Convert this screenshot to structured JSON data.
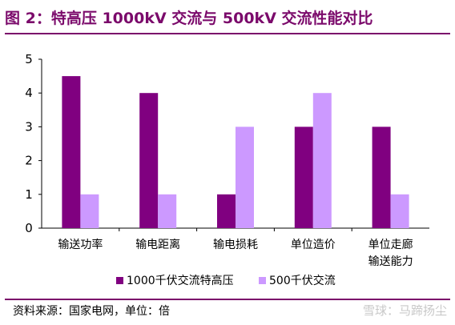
{
  "figure": {
    "title": "图 2：特高压 1000kV 交流与 500kV 交流性能对比",
    "source": "资料来源：国家电网，单位：倍",
    "watermark": "雪球：马蹄扬尘"
  },
  "colors": {
    "accent": "#7b0a6b",
    "series_1000": "#800080",
    "series_500": "#cc99ff"
  },
  "chart_data": {
    "type": "bar",
    "categories": [
      [
        "输送功率"
      ],
      [
        "输电距离"
      ],
      [
        "输电损耗"
      ],
      [
        "单位造价"
      ],
      [
        "单位走廊",
        "输送能力"
      ]
    ],
    "series": [
      {
        "name": "1000千伏交流特高压",
        "values": [
          4.5,
          4,
          1,
          3,
          3
        ]
      },
      {
        "name": "500千伏交流",
        "values": [
          1,
          1,
          3,
          4,
          1
        ]
      }
    ],
    "ylim": [
      0,
      5
    ],
    "yticks": [
      0,
      1,
      2,
      3,
      4,
      5
    ],
    "grid": false,
    "legend_position": "bottom"
  }
}
